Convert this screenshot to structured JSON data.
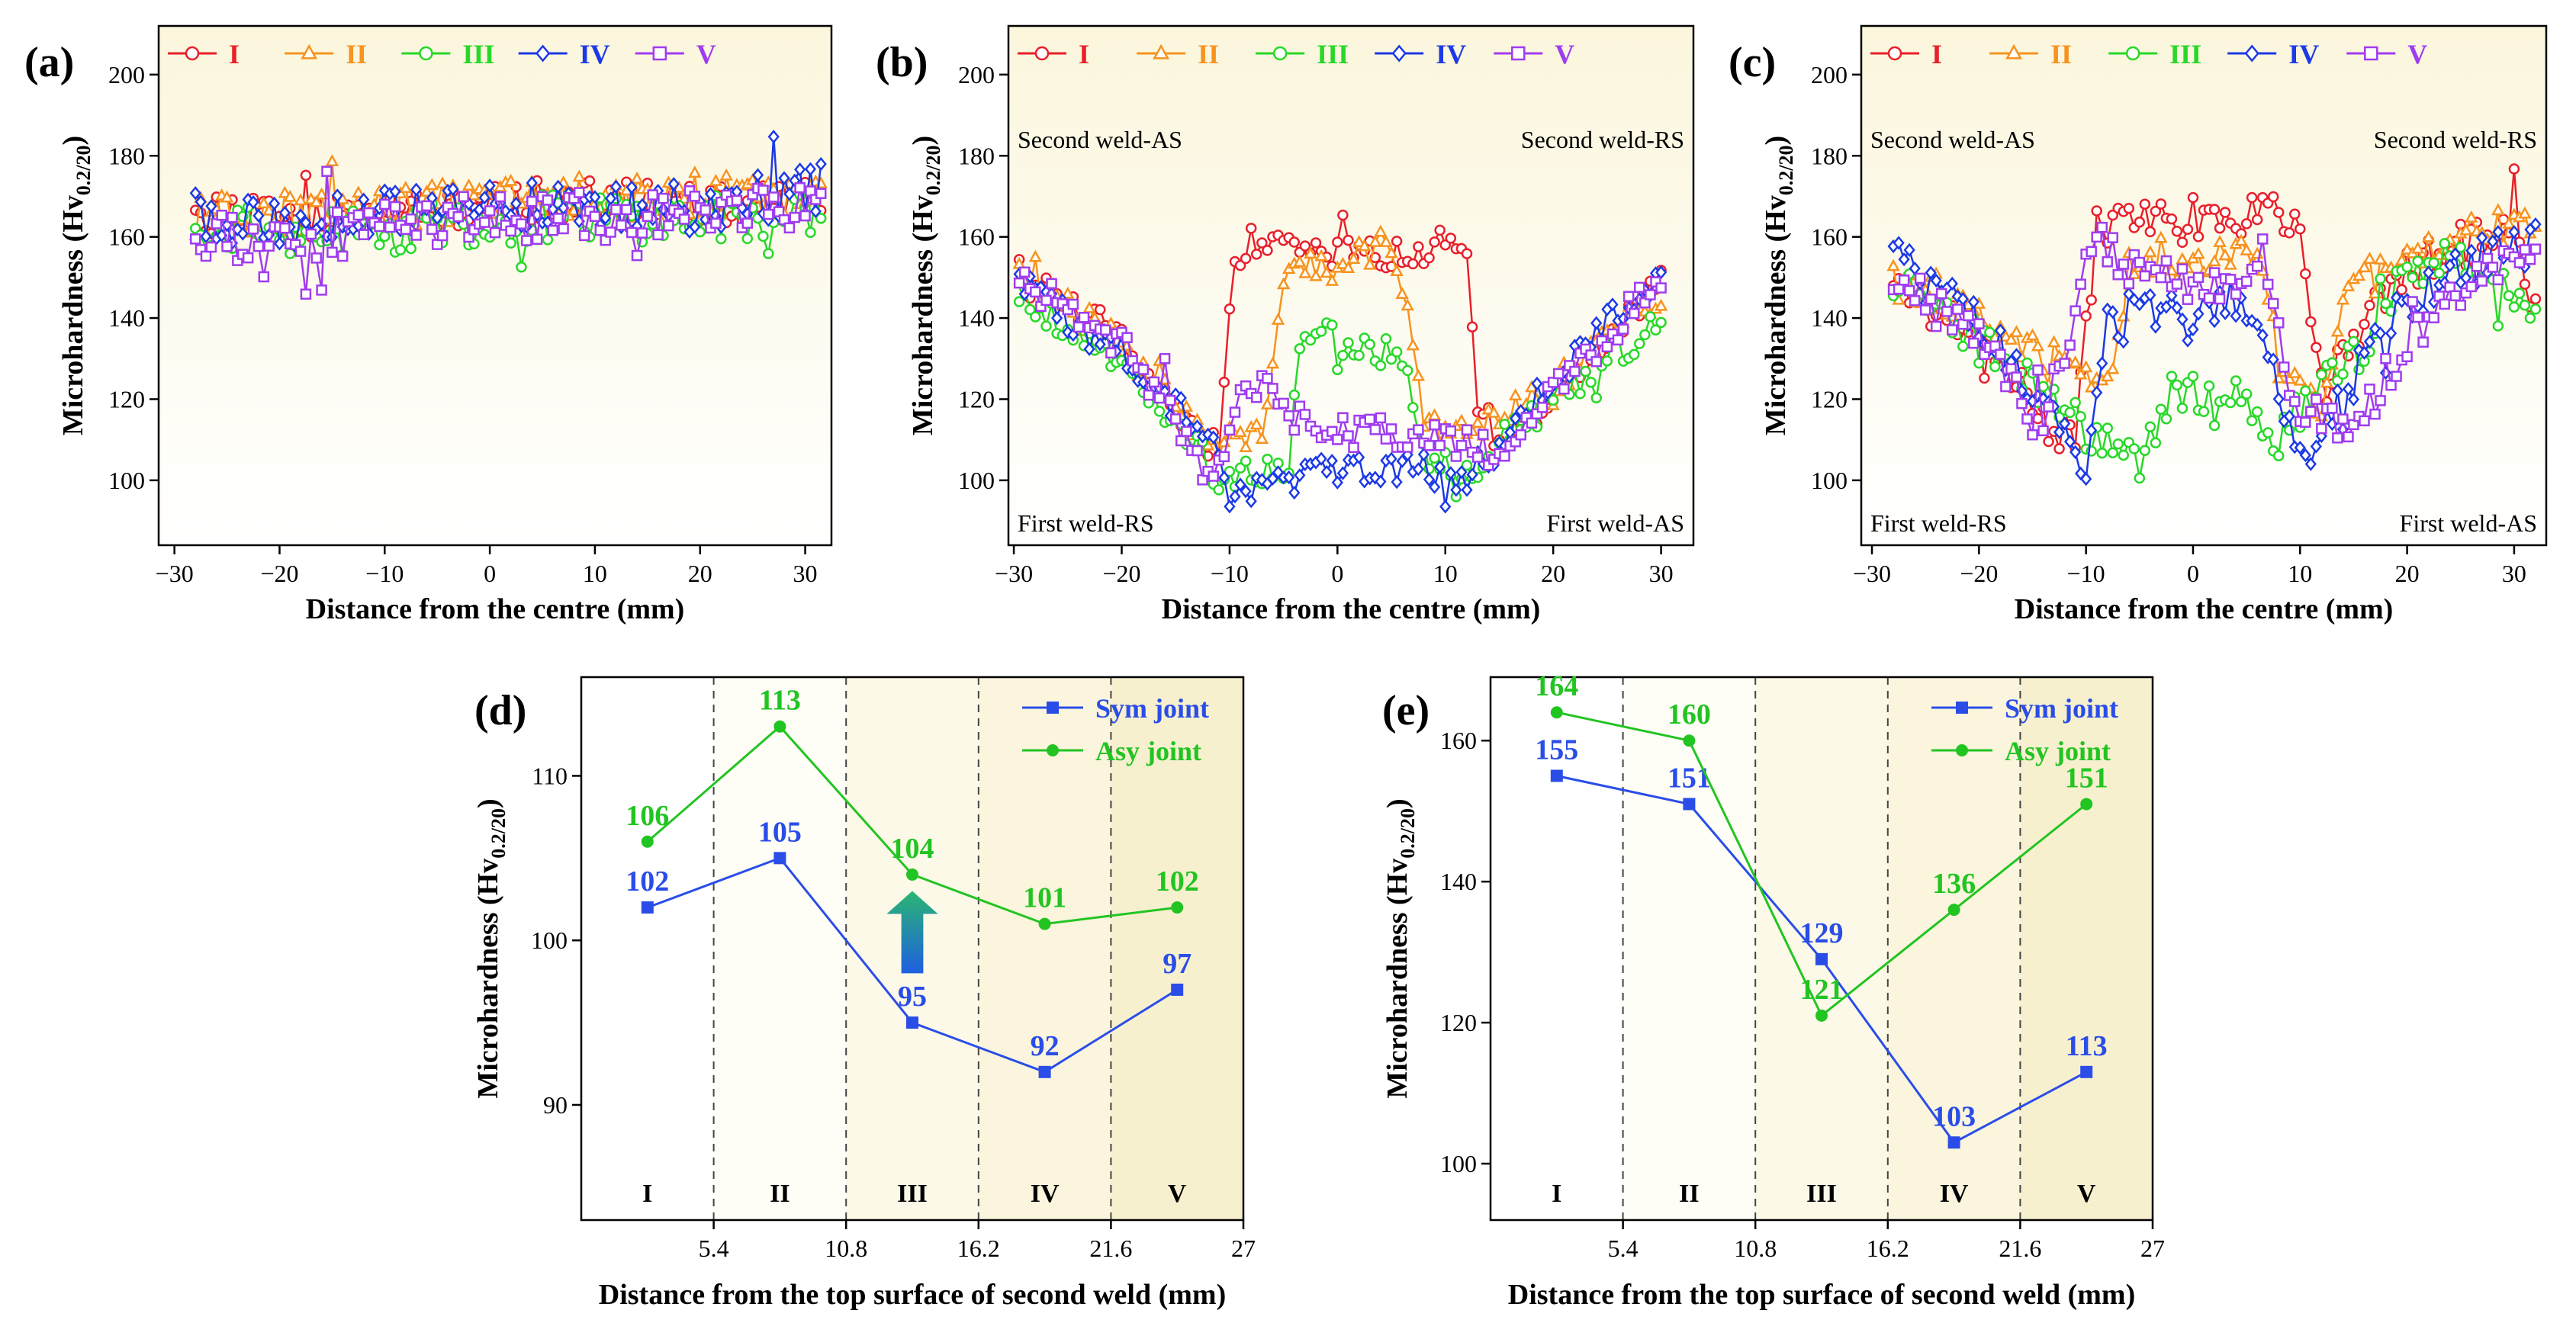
{
  "figure": {
    "panels_top": [
      "(a)",
      "(b)",
      "(c)"
    ],
    "panels_bottom": [
      "(d)",
      "(e)"
    ]
  },
  "colors": {
    "I": "#e8202a",
    "II": "#f7931e",
    "III": "#28d828",
    "IV": "#1c39e6",
    "V": "#a03cf0",
    "sym": "#2a4de8",
    "asy": "#22c422"
  },
  "chart_data": [
    {
      "id": "a",
      "type": "line",
      "panel_label": "(a)",
      "xlabel": "Distance from the centre (mm)",
      "ylabel": "Microhardness (Hv0.2/20)",
      "ylabel_main": "Microhardness (Hv",
      "ylabel_sub": "0.2/20",
      "ylabel_close": ")",
      "xlim": [
        -31.5,
        32.5
      ],
      "ylim": [
        84,
        212
      ],
      "xticks": [
        -30,
        -20,
        -10,
        0,
        10,
        20,
        30
      ],
      "xtick_labels": [
        "−30",
        "−20",
        "−10",
        "0",
        "10",
        "20",
        "30"
      ],
      "yticks": [
        100,
        120,
        140,
        160,
        180,
        200
      ],
      "ytick_labels": [
        "100",
        "120",
        "140",
        "160",
        "180",
        "200"
      ],
      "legend": [
        "I",
        "II",
        "III",
        "IV",
        "V"
      ],
      "annotations": [],
      "series": [
        {
          "name": "I",
          "marker": "circle",
          "xstart": -28,
          "xend": 31.5,
          "knots": [
            [
              -28,
              166
            ],
            [
              -20,
              164
            ],
            [
              -10,
              166
            ],
            [
              0,
              168
            ],
            [
              10,
              169
            ],
            [
              20,
              168
            ],
            [
              31.5,
              170
            ]
          ],
          "noise": 5
        },
        {
          "name": "II",
          "marker": "triangle",
          "xstart": -28,
          "xend": 31.5,
          "knots": [
            [
              -28,
              165
            ],
            [
              -20,
              166
            ],
            [
              -10,
              167
            ],
            [
              0,
              169
            ],
            [
              10,
              170
            ],
            [
              20,
              169
            ],
            [
              31.5,
              171
            ]
          ],
          "noise": 5
        },
        {
          "name": "III",
          "marker": "circle",
          "xstart": -28,
          "xend": 31.5,
          "knots": [
            [
              -28,
              162
            ],
            [
              -20,
              161
            ],
            [
              -10,
              162
            ],
            [
              0,
              164
            ],
            [
              10,
              165
            ],
            [
              20,
              164
            ],
            [
              31.5,
              166
            ]
          ],
          "noise": 6
        },
        {
          "name": "IV",
          "marker": "diamond",
          "xstart": -28,
          "xend": 31.5,
          "knots": [
            [
              -28,
              165
            ],
            [
              -20,
              163
            ],
            [
              -10,
              167
            ],
            [
              0,
              168
            ],
            [
              10,
              168
            ],
            [
              20,
              167
            ],
            [
              31.5,
              172
            ]
          ],
          "noise": 6
        },
        {
          "name": "V",
          "marker": "square",
          "xstart": -28,
          "xend": 31.5,
          "knots": [
            [
              -28,
              160
            ],
            [
              -20,
              158
            ],
            [
              -10,
              162
            ],
            [
              0,
              165
            ],
            [
              10,
              165
            ],
            [
              20,
              166
            ],
            [
              31.5,
              168
            ]
          ],
          "noise": 6
        }
      ]
    },
    {
      "id": "b",
      "type": "line",
      "panel_label": "(b)",
      "xlabel": "Distance from the centre (mm)",
      "ylabel": "Microhardness (Hv0.2/20)",
      "ylabel_main": "Microhardness (Hv",
      "ylabel_sub": "0.2/20",
      "ylabel_close": ")",
      "xlim": [
        -30.5,
        33
      ],
      "ylim": [
        84,
        212
      ],
      "xticks": [
        -30,
        -20,
        -10,
        0,
        10,
        20,
        30
      ],
      "xtick_labels": [
        "−30",
        "−20",
        "−10",
        "0",
        "10",
        "20",
        "30"
      ],
      "yticks": [
        100,
        120,
        140,
        160,
        180,
        200
      ],
      "ytick_labels": [
        "100",
        "120",
        "140",
        "160",
        "180",
        "200"
      ],
      "legend": [
        "I",
        "II",
        "III",
        "IV",
        "V"
      ],
      "annotations": [
        "Second weld-AS",
        "Second weld-RS",
        "First weld-RS",
        "First weld-AS"
      ],
      "series": [
        {
          "name": "I",
          "marker": "circle",
          "xstart": -29.5,
          "xend": 30,
          "knots": [
            [
              -29.5,
              155
            ],
            [
              -20,
              135
            ],
            [
              -14,
              112
            ],
            [
              -11,
              108
            ],
            [
              -9.5,
              150
            ],
            [
              -8,
              160
            ],
            [
              0,
              155
            ],
            [
              10,
              158
            ],
            [
              12,
              158
            ],
            [
              13,
              120
            ],
            [
              15,
              108
            ],
            [
              20,
              120
            ],
            [
              30,
              148
            ]
          ],
          "noise": 4
        },
        {
          "name": "II",
          "marker": "triangle",
          "xstart": -29.5,
          "xend": 30,
          "knots": [
            [
              -29.5,
              150
            ],
            [
              -20,
              133
            ],
            [
              -12,
              110
            ],
            [
              -7,
              110
            ],
            [
              -5,
              150
            ],
            [
              0,
              155
            ],
            [
              5,
              158
            ],
            [
              7,
              135
            ],
            [
              8,
              112
            ],
            [
              13,
              112
            ],
            [
              20,
              122
            ],
            [
              30,
              146
            ]
          ],
          "noise": 4
        },
        {
          "name": "III",
          "marker": "circle",
          "xstart": -29.5,
          "xend": 30,
          "knots": [
            [
              -29.5,
              145
            ],
            [
              -22,
              132
            ],
            [
              -14,
              112
            ],
            [
              -11,
              100
            ],
            [
              -5,
              102
            ],
            [
              -3,
              138
            ],
            [
              3,
              132
            ],
            [
              6,
              132
            ],
            [
              8,
              105
            ],
            [
              12,
              102
            ],
            [
              20,
              120
            ],
            [
              30,
              140
            ]
          ],
          "noise": 4
        },
        {
          "name": "IV",
          "marker": "diamond",
          "xstart": -29.5,
          "xend": 30,
          "knots": [
            [
              -29.5,
              148
            ],
            [
              -20,
              132
            ],
            [
              -12,
              110
            ],
            [
              -9,
              96
            ],
            [
              -5,
              100
            ],
            [
              0,
              102
            ],
            [
              8,
              104
            ],
            [
              10,
              98
            ],
            [
              14,
              105
            ],
            [
              20,
              125
            ],
            [
              30,
              152
            ]
          ],
          "noise": 4
        },
        {
          "name": "V",
          "marker": "square",
          "xstart": -29.5,
          "xend": 30,
          "knots": [
            [
              -29.5,
              150
            ],
            [
              -20,
              133
            ],
            [
              -15,
              115
            ],
            [
              -12,
              100
            ],
            [
              -8,
              125
            ],
            [
              -3,
              115
            ],
            [
              0,
              112
            ],
            [
              8,
              112
            ],
            [
              12,
              112
            ],
            [
              15,
              105
            ],
            [
              20,
              122
            ],
            [
              30,
              150
            ]
          ],
          "noise": 4
        }
      ]
    },
    {
      "id": "c",
      "type": "line",
      "panel_label": "(c)",
      "xlabel": "Distance from the centre (mm)",
      "ylabel": "Microhardness (Hv0.2/20)",
      "ylabel_main": "Microhardness (Hv",
      "ylabel_sub": "0.2/20",
      "ylabel_close": ")",
      "xlim": [
        -31,
        33
      ],
      "ylim": [
        84,
        212
      ],
      "xticks": [
        -30,
        -20,
        -10,
        0,
        10,
        20,
        30
      ],
      "xtick_labels": [
        "−30",
        "−20",
        "−10",
        "0",
        "10",
        "20",
        "30"
      ],
      "yticks": [
        100,
        120,
        140,
        160,
        180,
        200
      ],
      "ytick_labels": [
        "100",
        "120",
        "140",
        "160",
        "180",
        "200"
      ],
      "legend": [
        "I",
        "II",
        "III",
        "IV",
        "V"
      ],
      "annotations": [
        "Second weld-AS",
        "Second weld-RS",
        "First weld-RS",
        "First weld-AS"
      ],
      "series": [
        {
          "name": "I",
          "marker": "circle",
          "xstart": -28,
          "xend": 32,
          "knots": [
            [
              -28,
              150
            ],
            [
              -20,
              135
            ],
            [
              -14,
              115
            ],
            [
              -11,
              110
            ],
            [
              -9,
              162
            ],
            [
              0,
              165
            ],
            [
              10,
              165
            ],
            [
              12,
              125
            ],
            [
              15,
              135
            ],
            [
              20,
              152
            ],
            [
              30,
              165
            ],
            [
              32,
              140
            ]
          ],
          "noise": 5
        },
        {
          "name": "II",
          "marker": "triangle",
          "xstart": -28,
          "xend": 32,
          "knots": [
            [
              -28,
              150
            ],
            [
              -20,
              140
            ],
            [
              -14,
              130
            ],
            [
              -8,
              125
            ],
            [
              -6,
              150
            ],
            [
              0,
              155
            ],
            [
              6,
              155
            ],
            [
              8,
              130
            ],
            [
              12,
              120
            ],
            [
              15,
              150
            ],
            [
              25,
              160
            ],
            [
              32,
              165
            ]
          ],
          "noise": 5
        },
        {
          "name": "III",
          "marker": "circle",
          "xstart": -28,
          "xend": 32,
          "knots": [
            [
              -28,
              148
            ],
            [
              -20,
              135
            ],
            [
              -15,
              125
            ],
            [
              -10,
              110
            ],
            [
              -5,
              105
            ],
            [
              -2,
              122
            ],
            [
              5,
              120
            ],
            [
              8,
              110
            ],
            [
              12,
              125
            ],
            [
              15,
              130
            ],
            [
              20,
              150
            ],
            [
              25,
              155
            ],
            [
              32,
              140
            ]
          ],
          "noise": 5
        },
        {
          "name": "IV",
          "marker": "diamond",
          "xstart": -28,
          "xend": 32,
          "knots": [
            [
              -28,
              155
            ],
            [
              -20,
              140
            ],
            [
              -14,
              115
            ],
            [
              -10,
              104
            ],
            [
              -8,
              140
            ],
            [
              0,
              140
            ],
            [
              5,
              145
            ],
            [
              10,
              105
            ],
            [
              14,
              120
            ],
            [
              20,
              145
            ],
            [
              30,
              158
            ]
          ],
          "noise": 6
        },
        {
          "name": "V",
          "marker": "square",
          "xstart": -28,
          "xend": 32,
          "knots": [
            [
              -28,
              150
            ],
            [
              -20,
              135
            ],
            [
              -14,
              115
            ],
            [
              -9,
              160
            ],
            [
              -5,
              150
            ],
            [
              3,
              148
            ],
            [
              7,
              152
            ],
            [
              9,
              120
            ],
            [
              15,
              110
            ],
            [
              17,
              120
            ],
            [
              20,
              135
            ],
            [
              30,
              155
            ],
            [
              32,
              160
            ]
          ],
          "noise": 5
        }
      ]
    },
    {
      "id": "d",
      "type": "line",
      "panel_label": "(d)",
      "xlabel": "Distance from the top surface of second weld (mm)",
      "ylabel": "Microhardness (Hv0.2/20)",
      "ylabel_main": "Microhardness (Hv",
      "ylabel_sub": "0.2/20",
      "ylabel_close": ")",
      "xlim": [
        0,
        27
      ],
      "ylim": [
        83,
        116
      ],
      "xticks": [
        5.4,
        10.8,
        16.2,
        21.6,
        27
      ],
      "xtick_labels": [
        "5.4",
        "10.8",
        "16.2",
        "21.6",
        "27"
      ],
      "yticks": [
        90,
        100,
        110
      ],
      "ytick_labels": [
        "90",
        "100",
        "110"
      ],
      "dashed_lines": [
        5.4,
        10.8,
        16.2,
        21.6
      ],
      "region_labels": [
        "I",
        "II",
        "III",
        "IV",
        "V"
      ],
      "x": [
        2.7,
        8.1,
        13.5,
        18.9,
        24.3
      ],
      "series": [
        {
          "name": "Sym joint",
          "key": "sym",
          "marker": "square",
          "values": [
            102,
            105,
            95,
            92,
            97
          ],
          "labels": [
            "102",
            "105",
            "95",
            "92",
            "97"
          ]
        },
        {
          "name": "Asy joint",
          "key": "asy",
          "marker": "circle",
          "values": [
            106,
            113,
            104,
            101,
            102
          ],
          "labels": [
            "106",
            "113",
            "104",
            "101",
            "102"
          ]
        }
      ],
      "arrow": {
        "x": 13.5,
        "y_from": 98,
        "y_to": 103
      }
    },
    {
      "id": "e",
      "type": "line",
      "panel_label": "(e)",
      "xlabel": "Distance from the top surface of second weld (mm)",
      "ylabel": "Microhardness (Hv0.2/20)",
      "ylabel_main": "Microhardness (Hv",
      "ylabel_sub": "0.2/20",
      "ylabel_close": ")",
      "xlim": [
        0,
        27
      ],
      "ylim": [
        92,
        169
      ],
      "xticks": [
        5.4,
        10.8,
        16.2,
        21.6,
        27
      ],
      "xtick_labels": [
        "5.4",
        "10.8",
        "16.2",
        "21.6",
        "27"
      ],
      "yticks": [
        100,
        120,
        140,
        160
      ],
      "ytick_labels": [
        "100",
        "120",
        "140",
        "160"
      ],
      "dashed_lines": [
        5.4,
        10.8,
        16.2,
        21.6
      ],
      "region_labels": [
        "I",
        "II",
        "III",
        "IV",
        "V"
      ],
      "x": [
        2.7,
        8.1,
        13.5,
        18.9,
        24.3
      ],
      "series": [
        {
          "name": "Sym joint",
          "key": "sym",
          "marker": "square",
          "values": [
            155,
            151,
            129,
            103,
            113
          ],
          "labels": [
            "155",
            "151",
            "129",
            "103",
            "113"
          ]
        },
        {
          "name": "Asy joint",
          "key": "asy",
          "marker": "circle",
          "values": [
            164,
            160,
            121,
            136,
            151
          ],
          "labels": [
            "164",
            "160",
            "121",
            "136",
            "151"
          ]
        }
      ]
    }
  ]
}
